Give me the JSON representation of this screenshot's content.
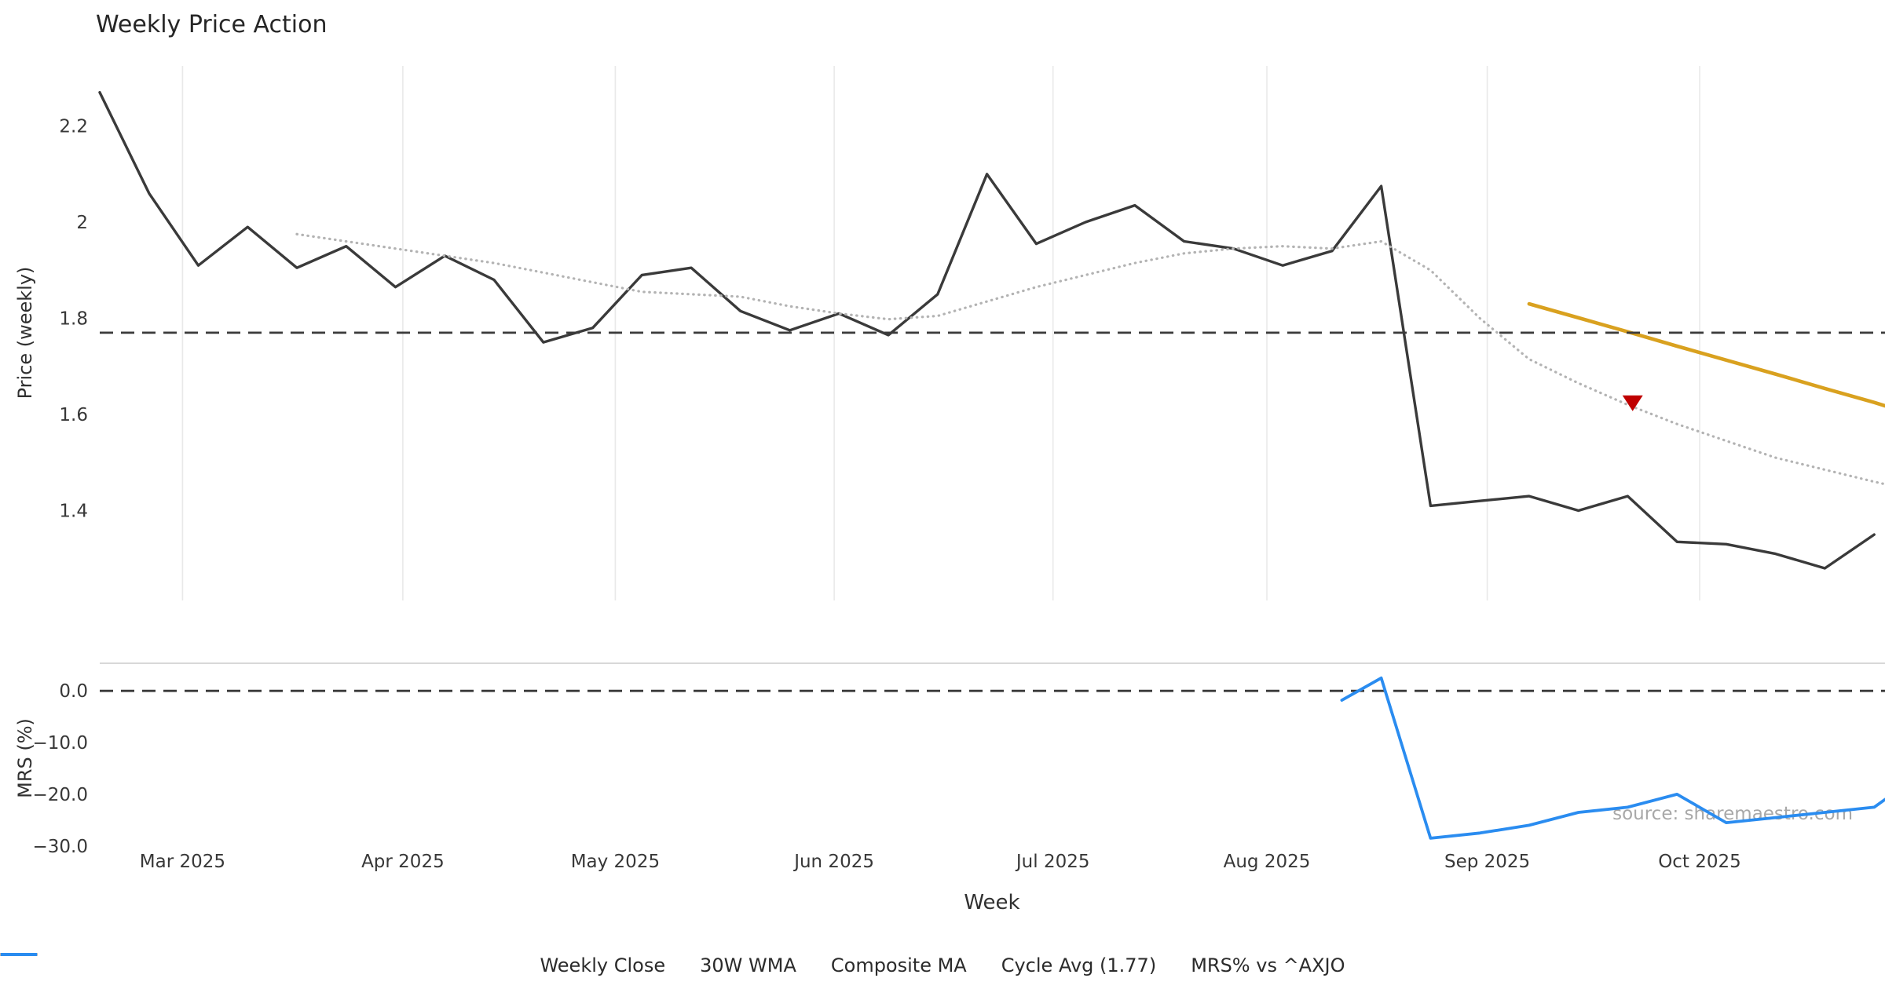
{
  "title": "Weekly Price Action",
  "watermark": "source: sharemaestro.com",
  "chart_data": {
    "type": "line",
    "xlabel": "Week",
    "x_unit": "week index (weekly bars, late Feb 2025 to early Nov 2025)",
    "xlim": [
      0,
      36.22
    ],
    "x_ticks": [
      {
        "pos": 1.68,
        "label": "Mar 2025"
      },
      {
        "pos": 6.15,
        "label": "Apr 2025"
      },
      {
        "pos": 10.46,
        "label": "May 2025"
      },
      {
        "pos": 14.9,
        "label": "Jun 2025"
      },
      {
        "pos": 19.34,
        "label": "Jul 2025"
      },
      {
        "pos": 23.68,
        "label": "Aug 2025"
      },
      {
        "pos": 28.15,
        "label": "Sep 2025"
      },
      {
        "pos": 32.46,
        "label": "Oct 2025"
      }
    ],
    "colors": {
      "grid": "#e9e9e9",
      "spine": "#cccccc",
      "text": "#383838",
      "watermark": "#a8a8a8"
    },
    "panels": [
      {
        "name": "price",
        "ylabel": "Price (weekly)",
        "ylim": [
          1.213,
          2.325
        ],
        "grid": "vertical-months-only",
        "y_ticks": [
          {
            "value": 2.2,
            "label": "2.2"
          },
          {
            "value": 2.0,
            "label": "2"
          },
          {
            "value": 1.8,
            "label": "1.8"
          },
          {
            "value": 1.6,
            "label": "1.6"
          },
          {
            "value": 1.4,
            "label": "1.4"
          }
        ],
        "series": [
          {
            "id": "weekly-close",
            "name": "Weekly Close",
            "color": "#3a3a3a",
            "style": "solid",
            "width": 3.4,
            "x": [
              0,
              1,
              2,
              3,
              4,
              5,
              6,
              7,
              8,
              9,
              10,
              11,
              12,
              13,
              14,
              15,
              16,
              17,
              18,
              19,
              20,
              21,
              22,
              23,
              24,
              25,
              26,
              27,
              28,
              29,
              30,
              31,
              32,
              33,
              34,
              35,
              36
            ],
            "y": [
              2.27,
              2.06,
              1.91,
              1.99,
              1.905,
              1.95,
              1.865,
              1.93,
              1.88,
              1.75,
              1.78,
              1.89,
              1.905,
              1.815,
              1.775,
              1.81,
              1.765,
              1.85,
              2.1,
              1.955,
              2.0,
              2.035,
              1.96,
              1.945,
              1.91,
              1.94,
              2.075,
              1.41,
              1.42,
              1.43,
              1.4,
              1.43,
              1.335,
              1.33,
              1.31,
              1.28,
              1.35
            ]
          },
          {
            "id": "wma-30w",
            "name": "30W WMA",
            "color": "#d9a11f",
            "style": "solid",
            "width": 4.6,
            "x": [
              29,
              30,
              31,
              32,
              33,
              34,
              35,
              36,
              36.22
            ],
            "y": [
              1.83,
              1.801,
              1.772,
              1.742,
              1.713,
              1.684,
              1.654,
              1.625,
              1.618
            ]
          },
          {
            "id": "composite-ma",
            "name": "Composite MA",
            "color": "#b3b3b3",
            "style": "dotted",
            "width": 3.2,
            "x": [
              4,
              5,
              6,
              7,
              8,
              9,
              10,
              11,
              12,
              13,
              14,
              15,
              16,
              17,
              18,
              19,
              20,
              21,
              22,
              23,
              24,
              25,
              26,
              27,
              28,
              29,
              30,
              31,
              32,
              33,
              34,
              35,
              36,
              36.22
            ],
            "y": [
              1.975,
              1.96,
              1.945,
              1.93,
              1.915,
              1.895,
              1.875,
              1.855,
              1.85,
              1.845,
              1.825,
              1.81,
              1.798,
              1.805,
              1.835,
              1.865,
              1.89,
              1.915,
              1.935,
              1.945,
              1.95,
              1.945,
              1.96,
              1.9,
              1.8,
              1.715,
              1.665,
              1.62,
              1.58,
              1.545,
              1.51,
              1.485,
              1.46,
              1.455
            ]
          },
          {
            "id": "cycle-avg",
            "name": "Cycle Avg (1.77)",
            "color": "#3a3a3a",
            "style": "dashed",
            "width": 2.8,
            "hline": 1.77
          }
        ],
        "marker": {
          "id": "signal-marker",
          "shape": "triangle-down",
          "color": "#bf0000",
          "x": 31.1,
          "y": 1.625
        }
      },
      {
        "name": "mrs",
        "ylabel": "MRS (%)",
        "ylim": [
          -31.4,
          5.35
        ],
        "y_ticks": [
          {
            "value": 0,
            "label": "0.0"
          },
          {
            "value": -10,
            "label": "−10.0"
          },
          {
            "value": -20,
            "label": "−20.0"
          },
          {
            "value": -30,
            "label": "−30.0"
          }
        ],
        "zero_line": {
          "value": 0,
          "color": "#3a3a3a",
          "style": "dashed",
          "width": 2.8
        },
        "series": [
          {
            "id": "mrs-axjo",
            "name": "MRS% vs ^AXJO",
            "color": "#2a8cf0",
            "style": "solid",
            "width": 3.8,
            "x": [
              25.2,
              26,
              27,
              28,
              29,
              30,
              31,
              32,
              33,
              34,
              35,
              36,
              36.22
            ],
            "y": [
              -1.8,
              2.5,
              -28.5,
              -27.5,
              -26.0,
              -23.5,
              -22.5,
              -20.0,
              -25.5,
              -24.5,
              -23.5,
              -22.5,
              -21.0
            ]
          }
        ]
      }
    ],
    "legend": [
      {
        "label": "Weekly Close",
        "color": "#3a3a3a",
        "style": "solid"
      },
      {
        "label": "30W WMA",
        "color": "#d9a11f",
        "style": "solid"
      },
      {
        "label": "Composite MA",
        "color": "#b3b3b3",
        "style": "dotted"
      },
      {
        "label": "Cycle Avg (1.77)",
        "color": "#3a3a3a",
        "style": "dashed"
      },
      {
        "label": "MRS% vs ^AXJO",
        "color": "#2a8cf0",
        "style": "solid"
      }
    ]
  }
}
